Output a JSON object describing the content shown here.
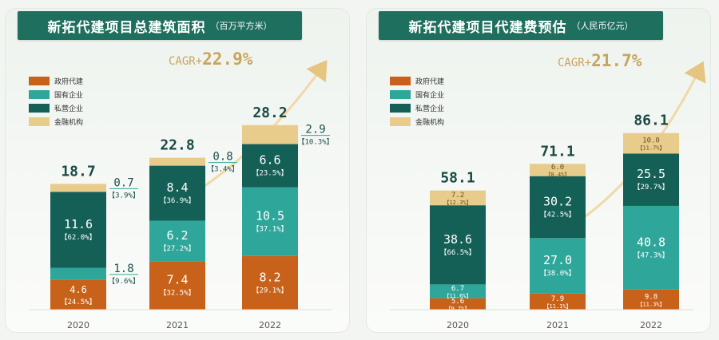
{
  "chart_data": [
    {
      "type": "bar",
      "stacked": true,
      "title": "新拓代建项目总建筑面积",
      "unit": "（百万平方米）",
      "categories": [
        "2020",
        "2021",
        "2022"
      ],
      "cagr_label": "CAGR+",
      "cagr_value": "22.9%",
      "series": [
        {
          "name": "政府代建",
          "values": [
            4.6,
            7.4,
            8.2
          ],
          "value_labels": [
            "4.6",
            "7.4",
            "8.2"
          ],
          "pct_labels": [
            "【24.5%】",
            "【32.5%】",
            "【29.1%】"
          ],
          "color": "#c8621a"
        },
        {
          "name": "国有企业",
          "values": [
            1.8,
            6.2,
            10.5
          ],
          "value_labels": [
            "1.8",
            "6.2",
            "10.5"
          ],
          "pct_labels": [
            "【9.6%】",
            "【27.2%】",
            "【37.1%】"
          ],
          "color": "#2fa69a"
        },
        {
          "name": "私营企业",
          "values": [
            11.6,
            8.4,
            6.6
          ],
          "value_labels": [
            "11.6",
            "8.4",
            "6.6"
          ],
          "pct_labels": [
            "【62.0%】",
            "【36.9%】",
            "【23.5%】"
          ],
          "color": "#145f56"
        },
        {
          "name": "金融机构",
          "values": [
            0.7,
            0.8,
            2.9
          ],
          "value_labels": [
            "0.7",
            "0.8",
            "2.9"
          ],
          "pct_labels": [
            "【3.9%】",
            "【3.4%】",
            "【10.3%】"
          ],
          "color": "#e8cc8c"
        }
      ],
      "totals": [
        "18.7",
        "22.8",
        "28.2"
      ],
      "legend_position": "top-left"
    },
    {
      "type": "bar",
      "stacked": true,
      "title": "新拓代建项目代建费预估",
      "unit": "（人民币亿元）",
      "categories": [
        "2020",
        "2021",
        "2022"
      ],
      "cagr_label": "CAGR+",
      "cagr_value": "21.7%",
      "series": [
        {
          "name": "政府代建",
          "values": [
            5.6,
            7.9,
            9.8
          ],
          "value_labels": [
            "5.6",
            "7.9",
            "9.8"
          ],
          "pct_labels": [
            "【9.7%】",
            "【11.1%】",
            "【11.3%】"
          ],
          "color": "#c8621a"
        },
        {
          "name": "国有企业",
          "values": [
            6.7,
            27.0,
            40.8
          ],
          "value_labels": [
            "6.7",
            "27.0",
            "40.8"
          ],
          "pct_labels": [
            "【11.6%】",
            "【38.0%】",
            "【47.3%】"
          ],
          "color": "#2fa69a"
        },
        {
          "name": "私营企业",
          "values": [
            38.6,
            30.2,
            25.5
          ],
          "value_labels": [
            "38.6",
            "30.2",
            "25.5"
          ],
          "pct_labels": [
            "【66.5%】",
            "【42.5%】",
            "【29.7%】"
          ],
          "color": "#145f56"
        },
        {
          "name": "金融机构",
          "values": [
            7.2,
            6.0,
            10.0
          ],
          "value_labels": [
            "7.2",
            "6.0",
            "10.0"
          ],
          "pct_labels": [
            "【12.3%】",
            "【8.4%】",
            "【11.7%】"
          ],
          "color": "#e8cc8c"
        }
      ],
      "totals": [
        "58.1",
        "71.1",
        "86.1"
      ],
      "legend_position": "top-left"
    }
  ]
}
